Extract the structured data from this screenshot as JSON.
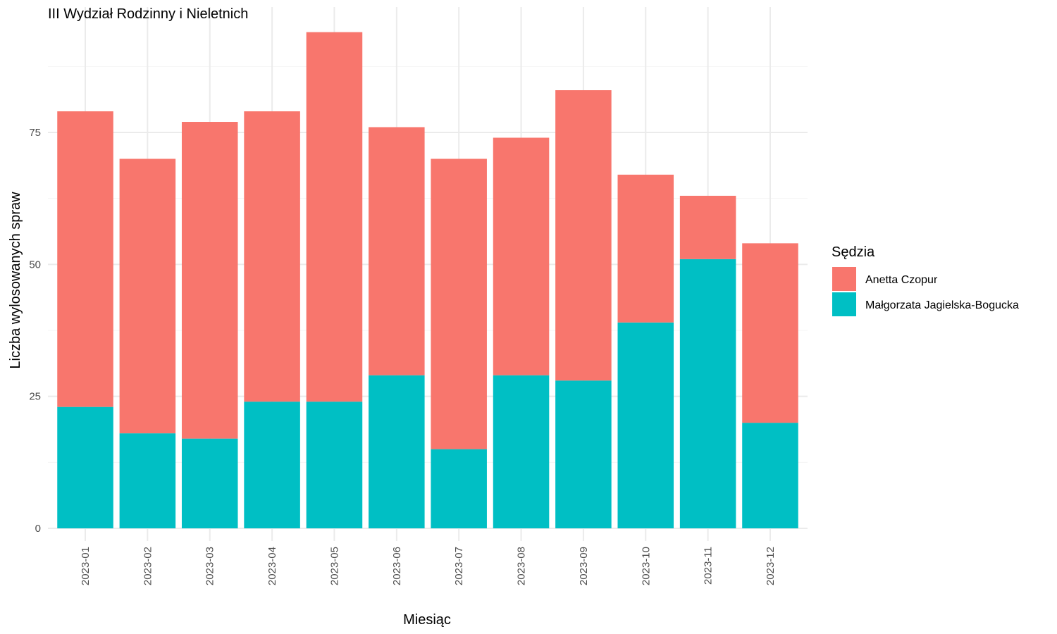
{
  "chart_data": {
    "type": "bar",
    "stacked": true,
    "title": "III Wydział Rodzinny i Nieletnich",
    "xlabel": "Miesiąc",
    "ylabel": "Liczba wylosowanych spraw",
    "categories": [
      "2023-01",
      "2023-02",
      "2023-03",
      "2023-04",
      "2023-05",
      "2023-06",
      "2023-07",
      "2023-08",
      "2023-09",
      "2023-10",
      "2023-11",
      "2023-12"
    ],
    "series": [
      {
        "name": "Małgorzata Jagielska-Bogucka",
        "color": "#00BFC4",
        "values": [
          23,
          18,
          17,
          24,
          24,
          29,
          15,
          29,
          28,
          39,
          51,
          20
        ]
      },
      {
        "name": "Anetta Czopur",
        "color": "#F8766D",
        "values": [
          56,
          52,
          60,
          55,
          70,
          47,
          55,
          45,
          55,
          28,
          12,
          34
        ]
      }
    ],
    "yticks": [
      0,
      25,
      50,
      75
    ],
    "ylim": [
      0,
      98.7
    ],
    "grid": true,
    "legend": {
      "title": "Sędzia",
      "position": "right",
      "entries": [
        {
          "label": "Anetta Czopur",
          "color": "#F8766D"
        },
        {
          "label": "Małgorzata Jagielska-Bogucka",
          "color": "#00BFC4"
        }
      ]
    }
  }
}
